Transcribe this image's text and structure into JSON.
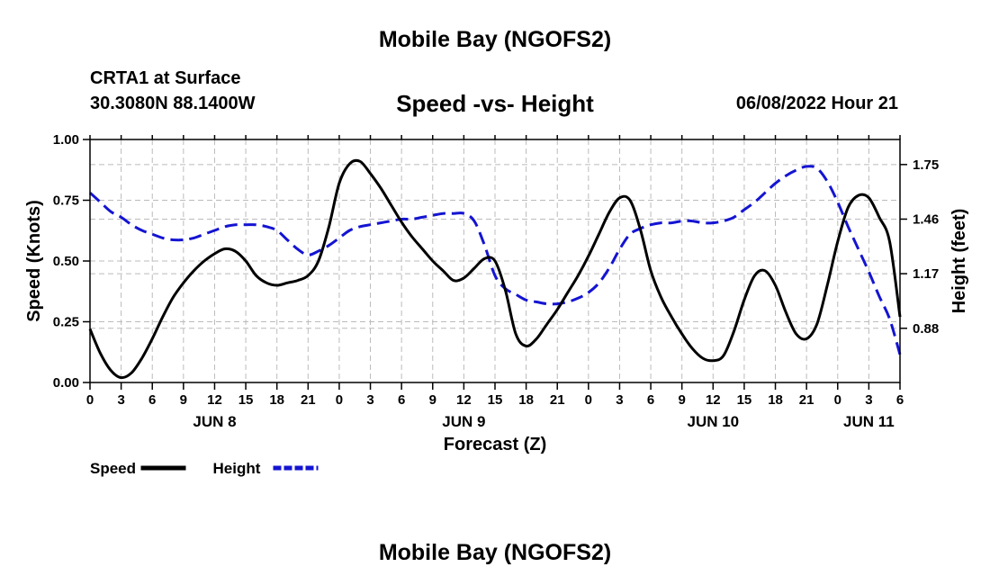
{
  "header": {
    "title": "Mobile Bay (NGOFS2)",
    "station": "CRTA1 at Surface",
    "coords": "30.3080N  88.1400W",
    "datetime": "06/08/2022 Hour 21"
  },
  "footer": {
    "title": "Mobile Bay (NGOFS2)"
  },
  "chart_data": {
    "type": "line",
    "title": "Speed -vs- Height",
    "xlabel": "Forecast (Z)",
    "ylabel": "Speed (Knots)",
    "y2label": "Height (feet)",
    "x_range_hours": [
      0,
      78
    ],
    "x_tick_labels": [
      "0",
      "3",
      "6",
      "9",
      "12",
      "15",
      "18",
      "21",
      "0",
      "3",
      "6",
      "9",
      "12",
      "15",
      "18",
      "21",
      "0",
      "3",
      "6",
      "9",
      "12",
      "15",
      "18",
      "21",
      "0",
      "3",
      "6"
    ],
    "day_labels": [
      {
        "label": "JUN 8",
        "hour": 12
      },
      {
        "label": "JUN 9",
        "hour": 36
      },
      {
        "label": "JUN 10",
        "hour": 60
      },
      {
        "label": "JUN 11",
        "hour": 75
      }
    ],
    "ylim": [
      0,
      1.0
    ],
    "y_ticks": [
      "0.00",
      "0.25",
      "0.50",
      "0.75",
      "1.00"
    ],
    "y2lim": [
      0.592,
      1.883
    ],
    "y2_ticks": [
      "0.88",
      "1.17",
      "1.46",
      "1.75"
    ],
    "grid": true,
    "legend": "bottom-left",
    "series": [
      {
        "name": "Speed",
        "axis": "left",
        "color": "#000000",
        "style": "solid",
        "x": [
          0,
          1,
          2,
          3,
          4,
          5,
          6,
          7,
          8,
          9,
          10,
          11,
          12,
          13,
          14,
          15,
          16,
          17,
          18,
          19,
          20,
          21,
          22,
          23,
          24,
          25,
          26,
          27,
          28,
          29,
          30,
          31,
          32,
          33,
          34,
          35,
          36,
          37,
          38,
          39,
          40,
          41,
          42,
          43,
          44,
          45,
          46,
          47,
          48,
          49,
          50,
          51,
          52,
          53,
          54,
          55,
          56,
          57,
          58,
          59,
          60,
          61,
          62,
          63,
          64,
          65,
          66,
          67,
          68,
          69,
          70,
          71,
          72,
          73,
          74,
          75,
          76,
          77,
          78
        ],
        "values": [
          0.22,
          0.12,
          0.05,
          0.02,
          0.04,
          0.1,
          0.18,
          0.27,
          0.35,
          0.41,
          0.46,
          0.5,
          0.53,
          0.55,
          0.54,
          0.5,
          0.44,
          0.41,
          0.4,
          0.41,
          0.42,
          0.44,
          0.5,
          0.64,
          0.82,
          0.9,
          0.91,
          0.86,
          0.8,
          0.73,
          0.66,
          0.6,
          0.55,
          0.5,
          0.46,
          0.42,
          0.43,
          0.47,
          0.51,
          0.5,
          0.38,
          0.2,
          0.15,
          0.18,
          0.24,
          0.3,
          0.37,
          0.44,
          0.52,
          0.61,
          0.7,
          0.76,
          0.75,
          0.63,
          0.46,
          0.35,
          0.27,
          0.2,
          0.14,
          0.1,
          0.09,
          0.11,
          0.21,
          0.34,
          0.44,
          0.46,
          0.4,
          0.29,
          0.2,
          0.18,
          0.24,
          0.4,
          0.58,
          0.72,
          0.77,
          0.76,
          0.68,
          0.58,
          0.27
        ]
      },
      {
        "name": "Height",
        "axis": "right",
        "color": "#1414d2",
        "style": "dashed",
        "x": [
          0,
          1,
          2,
          3,
          4,
          5,
          6,
          7,
          8,
          9,
          10,
          11,
          12,
          13,
          14,
          15,
          16,
          17,
          18,
          19,
          20,
          21,
          22,
          23,
          24,
          25,
          26,
          27,
          28,
          29,
          30,
          31,
          32,
          33,
          34,
          35,
          36,
          37,
          38,
          39,
          40,
          41,
          42,
          43,
          44,
          45,
          46,
          47,
          48,
          49,
          50,
          51,
          52,
          53,
          54,
          55,
          56,
          57,
          58,
          59,
          60,
          61,
          62,
          63,
          64,
          65,
          66,
          67,
          68,
          69,
          70,
          71,
          72,
          73,
          74,
          75,
          76,
          77,
          78
        ],
        "values": [
          1.6,
          1.55,
          1.5,
          1.47,
          1.43,
          1.4,
          1.38,
          1.36,
          1.35,
          1.35,
          1.36,
          1.38,
          1.4,
          1.42,
          1.43,
          1.43,
          1.43,
          1.42,
          1.4,
          1.35,
          1.3,
          1.27,
          1.29,
          1.32,
          1.36,
          1.4,
          1.42,
          1.43,
          1.44,
          1.45,
          1.46,
          1.46,
          1.47,
          1.48,
          1.49,
          1.49,
          1.49,
          1.45,
          1.32,
          1.16,
          1.09,
          1.06,
          1.03,
          1.02,
          1.01,
          1.01,
          1.02,
          1.04,
          1.07,
          1.12,
          1.2,
          1.3,
          1.38,
          1.41,
          1.43,
          1.44,
          1.44,
          1.45,
          1.45,
          1.44,
          1.44,
          1.45,
          1.47,
          1.51,
          1.55,
          1.6,
          1.65,
          1.69,
          1.72,
          1.74,
          1.73,
          1.66,
          1.55,
          1.42,
          1.3,
          1.18,
          1.05,
          0.93,
          0.74
        ]
      }
    ]
  }
}
